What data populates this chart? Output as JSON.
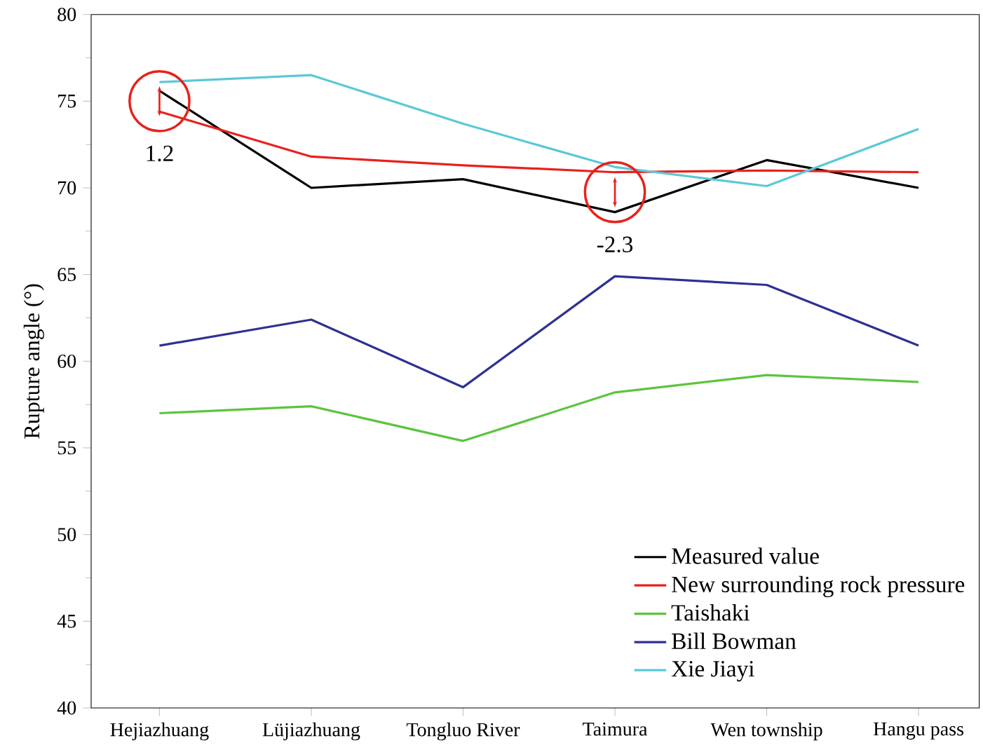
{
  "chart_data": {
    "type": "line",
    "ylabel": "Rupture angle (°)",
    "categories": [
      "Hejiazhuang",
      "Lüjiazhuang",
      "Tongluo River",
      "Taimura",
      "Wen township",
      "Hangu pass"
    ],
    "series": [
      {
        "name": "Measured value",
        "color": "#000000",
        "values": [
          75.6,
          70.0,
          70.5,
          68.6,
          71.6,
          70.0
        ]
      },
      {
        "name": "New surrounding rock pressure",
        "color": "#e8211c",
        "values": [
          74.4,
          71.8,
          71.3,
          70.9,
          71.0,
          70.9
        ]
      },
      {
        "name": "Taishaki",
        "color": "#5cc43f",
        "values": [
          57.0,
          57.4,
          55.4,
          58.2,
          59.2,
          58.8
        ]
      },
      {
        "name": "Bill Bowman",
        "color": "#2e3192",
        "values": [
          60.9,
          62.4,
          58.5,
          64.9,
          64.4,
          60.9
        ]
      },
      {
        "name": "Xie Jiayi",
        "color": "#5bc8d8",
        "values": [
          76.1,
          76.5,
          73.7,
          71.2,
          70.1,
          73.4
        ]
      }
    ],
    "ylim": [
      40,
      80
    ],
    "yticks": [
      40,
      45,
      50,
      55,
      60,
      65,
      70,
      75,
      80
    ],
    "legend": "bottom right",
    "grid": false,
    "marker": "none",
    "line_style": "solid",
    "annotations": [
      {
        "text": "1.2",
        "x": "Hejiazhuang",
        "y": 75.0
      },
      {
        "text": "-2.3",
        "x": "Taimura",
        "y": 69.75
      }
    ]
  }
}
